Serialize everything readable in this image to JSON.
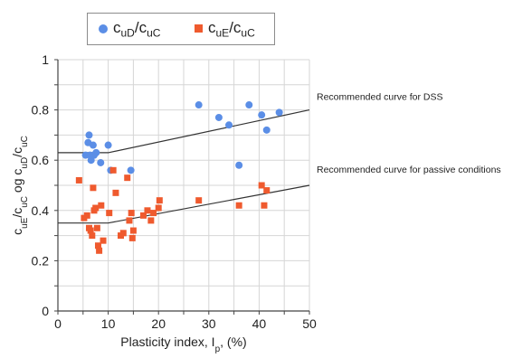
{
  "chart_data": {
    "type": "scatter",
    "xlabel": "Plasticity index, Ip, (%)",
    "ylabel": "cuE/cuC og cuD/cuC",
    "xlim": [
      0,
      50
    ],
    "ylim": [
      0,
      1
    ],
    "x_ticks": [
      "0",
      "10",
      "20",
      "30",
      "40",
      "50"
    ],
    "y_ticks": [
      "0",
      "0.2",
      "0.4",
      "0.6",
      "0.8",
      "1"
    ],
    "grid": true,
    "legend_position": "top",
    "series": [
      {
        "name": "cuD/cuC",
        "marker": "circle",
        "color": "#5b8ee6",
        "points": [
          [
            5.5,
            0.62
          ],
          [
            6.0,
            0.67
          ],
          [
            6.2,
            0.7
          ],
          [
            6.4,
            0.62
          ],
          [
            6.6,
            0.6
          ],
          [
            7.0,
            0.66
          ],
          [
            7.2,
            0.62
          ],
          [
            7.6,
            0.63
          ],
          [
            8.5,
            0.59
          ],
          [
            10.0,
            0.66
          ],
          [
            10.5,
            0.56
          ],
          [
            14.5,
            0.56
          ],
          [
            28.0,
            0.82
          ],
          [
            32.0,
            0.77
          ],
          [
            34.0,
            0.74
          ],
          [
            36.0,
            0.58
          ],
          [
            38.0,
            0.82
          ],
          [
            40.5,
            0.78
          ],
          [
            41.5,
            0.72
          ],
          [
            44.0,
            0.79
          ]
        ]
      },
      {
        "name": "cuE/cuC",
        "marker": "square",
        "color": "#ef5a2e",
        "points": [
          [
            4.2,
            0.52
          ],
          [
            5.2,
            0.37
          ],
          [
            5.8,
            0.38
          ],
          [
            6.2,
            0.33
          ],
          [
            6.5,
            0.32
          ],
          [
            6.8,
            0.3
          ],
          [
            7.0,
            0.49
          ],
          [
            7.2,
            0.4
          ],
          [
            7.5,
            0.41
          ],
          [
            7.8,
            0.33
          ],
          [
            8.0,
            0.26
          ],
          [
            8.2,
            0.24
          ],
          [
            8.6,
            0.42
          ],
          [
            9.0,
            0.28
          ],
          [
            10.2,
            0.39
          ],
          [
            11.0,
            0.56
          ],
          [
            11.5,
            0.47
          ],
          [
            12.5,
            0.3
          ],
          [
            13.0,
            0.31
          ],
          [
            13.8,
            0.53
          ],
          [
            14.2,
            0.36
          ],
          [
            14.6,
            0.39
          ],
          [
            14.8,
            0.29
          ],
          [
            15.0,
            0.32
          ],
          [
            17.0,
            0.38
          ],
          [
            17.8,
            0.4
          ],
          [
            18.5,
            0.36
          ],
          [
            19.0,
            0.39
          ],
          [
            20.0,
            0.41
          ],
          [
            20.2,
            0.44
          ],
          [
            28.0,
            0.44
          ],
          [
            36.0,
            0.42
          ],
          [
            40.5,
            0.5
          ],
          [
            41.0,
            0.42
          ],
          [
            41.5,
            0.48
          ]
        ]
      }
    ],
    "recommended_curves": [
      {
        "label": "Recommended curve for DSS",
        "points": [
          [
            0,
            0.63
          ],
          [
            10,
            0.63
          ],
          [
            50,
            0.8
          ]
        ]
      },
      {
        "label": "Recommended curve for passive conditions",
        "points": [
          [
            0,
            0.35
          ],
          [
            10,
            0.35
          ],
          [
            50,
            0.5
          ]
        ]
      }
    ]
  }
}
